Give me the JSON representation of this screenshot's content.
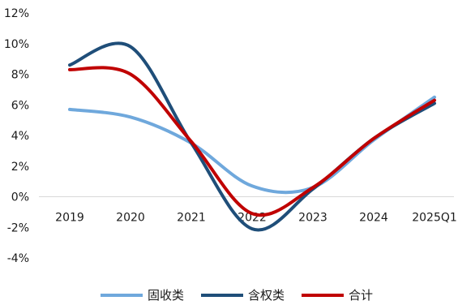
{
  "chart_data": {
    "type": "line",
    "title": "",
    "xlabel": "",
    "ylabel": "",
    "categories": [
      "2019",
      "2020",
      "2021",
      "2022",
      "2023",
      "2024",
      "2025Q1"
    ],
    "ylim": [
      -4,
      12
    ],
    "y_ticks": [
      "12%",
      "10%",
      "8%",
      "6%",
      "4%",
      "2%",
      "0%",
      "-2%",
      "-4%"
    ],
    "grid": false,
    "legend_position": "bottom",
    "series": [
      {
        "name": "固收类",
        "color": "#6fa8dc",
        "values": [
          5.7,
          5.2,
          3.5,
          0.7,
          0.6,
          3.7,
          6.5
        ]
      },
      {
        "name": "含权类",
        "color": "#1f4e79",
        "values": [
          8.6,
          9.8,
          3.5,
          -2.1,
          0.5,
          3.8,
          6.1
        ]
      },
      {
        "name": "合计",
        "color": "#c00000",
        "values": [
          8.3,
          8.0,
          3.6,
          -1.1,
          0.6,
          3.8,
          6.3
        ]
      }
    ]
  }
}
